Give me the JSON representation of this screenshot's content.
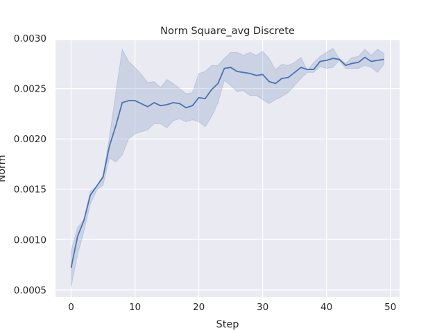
{
  "chart_data": {
    "type": "line",
    "title": "Norm Square_avg Discrete",
    "xlabel": "Step",
    "ylabel": "Norm",
    "xlim": [
      -2.45,
      51.45
    ],
    "ylim": [
      0.00043,
      0.00298
    ],
    "x_ticks": [
      0,
      10,
      20,
      30,
      40,
      50
    ],
    "x_tick_labels": [
      "0",
      "10",
      "20",
      "30",
      "40",
      "50"
    ],
    "y_ticks": [
      0.0005,
      0.001,
      0.0015,
      0.002,
      0.0025,
      0.003
    ],
    "y_tick_labels": [
      "0.0005",
      "0.0010",
      "0.0015",
      "0.0020",
      "0.0025",
      "0.0030"
    ],
    "grid": true,
    "colors": {
      "background": "#eaeaf2",
      "grid": "#ffffff",
      "line": "#4c72b0",
      "band": "#4c72b0"
    },
    "series": [
      {
        "x": [
          0,
          1,
          2,
          3,
          4,
          5,
          6,
          7,
          8,
          9,
          10,
          11,
          12,
          13,
          14,
          15,
          16,
          17,
          18,
          19,
          20,
          21,
          22,
          23,
          24,
          25,
          26,
          27,
          28,
          29,
          30,
          31,
          32,
          33,
          34,
          35,
          36,
          37,
          38,
          39,
          40,
          41,
          42,
          43,
          44,
          45,
          46,
          47,
          48,
          49
        ],
        "values": [
          0.00072,
          0.00103,
          0.00119,
          0.00144,
          0.00153,
          0.00162,
          0.00193,
          0.00213,
          0.00236,
          0.00238,
          0.00238,
          0.00235,
          0.00232,
          0.00236,
          0.00233,
          0.00234,
          0.00236,
          0.00235,
          0.00231,
          0.00233,
          0.00241,
          0.0024,
          0.00249,
          0.00255,
          0.0027,
          0.00271,
          0.00267,
          0.00266,
          0.00265,
          0.00263,
          0.00264,
          0.00257,
          0.00255,
          0.0026,
          0.00261,
          0.00266,
          0.00271,
          0.00269,
          0.00269,
          0.00277,
          0.00278,
          0.0028,
          0.00279,
          0.00273,
          0.00275,
          0.00276,
          0.00281,
          0.00277,
          0.00278,
          0.00279
        ],
        "lower": [
          0.00053,
          0.00085,
          0.00108,
          0.00135,
          0.00149,
          0.00154,
          0.00181,
          0.00177,
          0.00184,
          0.002,
          0.00205,
          0.00207,
          0.00209,
          0.00215,
          0.00215,
          0.00211,
          0.00218,
          0.0022,
          0.00217,
          0.00219,
          0.00217,
          0.00212,
          0.00222,
          0.00236,
          0.00258,
          0.00253,
          0.00247,
          0.00248,
          0.00243,
          0.00243,
          0.00239,
          0.00235,
          0.00239,
          0.00242,
          0.00246,
          0.00253,
          0.0026,
          0.00266,
          0.00266,
          0.00272,
          0.0027,
          0.00271,
          0.00278,
          0.0027,
          0.0027,
          0.0027,
          0.00273,
          0.00271,
          0.00266,
          0.00274
        ],
        "upper": [
          0.00089,
          0.00112,
          0.0012,
          0.00148,
          0.00153,
          0.00164,
          0.00202,
          0.00246,
          0.00289,
          0.00277,
          0.00271,
          0.00264,
          0.00256,
          0.00257,
          0.00251,
          0.00259,
          0.00255,
          0.0025,
          0.00245,
          0.00246,
          0.00265,
          0.00267,
          0.00273,
          0.00273,
          0.0028,
          0.00286,
          0.00286,
          0.00283,
          0.00286,
          0.00283,
          0.00287,
          0.0028,
          0.00269,
          0.00274,
          0.00273,
          0.00276,
          0.00281,
          0.00268,
          0.00276,
          0.00282,
          0.00286,
          0.0029,
          0.0028,
          0.00275,
          0.00281,
          0.00282,
          0.00289,
          0.00283,
          0.00289,
          0.00285
        ]
      }
    ]
  }
}
